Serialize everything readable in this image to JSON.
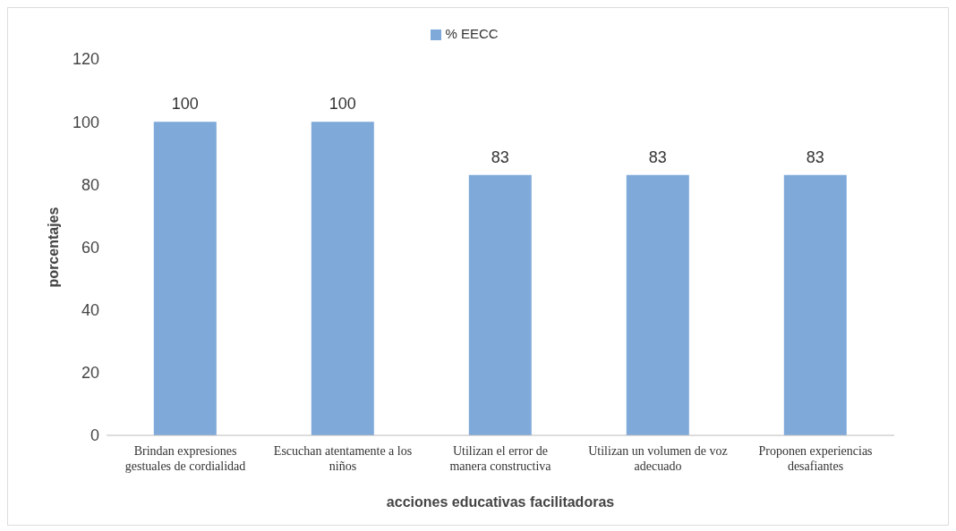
{
  "chart_data": {
    "type": "bar",
    "xlabel": "acciones educativas facilitadoras",
    "ylabel": "porcentajes",
    "categories": [
      "Brindan expresiones gestuales de cordialidad",
      "Escuchan atentamente a los niños",
      "Utilizan el error de manera constructiva",
      "Utilizan un volumen de voz adecuado",
      "Proponen experiencias desafiantes"
    ],
    "series": [
      {
        "name": "% EECC",
        "color": "#7ea9d9",
        "values": [
          100,
          100,
          83,
          83,
          83
        ]
      }
    ],
    "ylim": [
      0,
      120
    ],
    "yticks": [
      0,
      20,
      40,
      60,
      80,
      100,
      120
    ],
    "grid": false,
    "legend": "top",
    "data_labels": true
  }
}
